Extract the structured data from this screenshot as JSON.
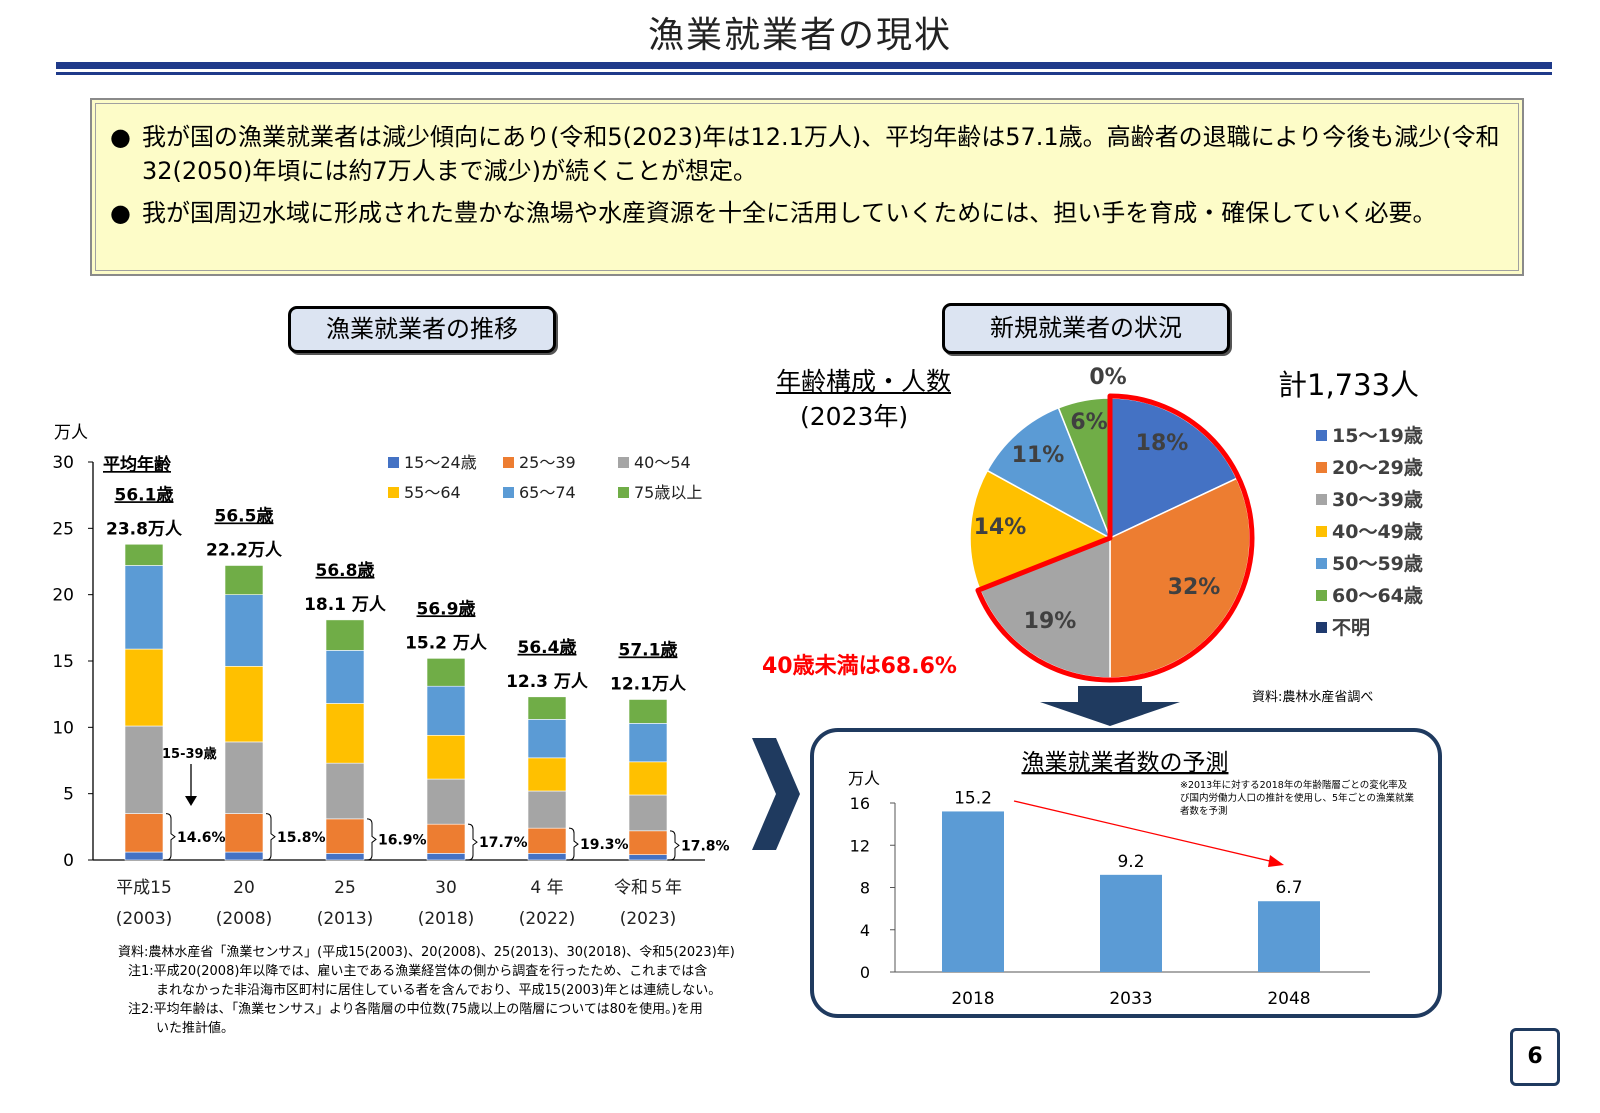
{
  "page": {
    "title": "漁業就業者の現状",
    "page_number": "6"
  },
  "summary": {
    "bullet_symbol": "●",
    "bullets": [
      "我が国の漁業就業者は減少傾向にあり(令和5(2023)年は12.1万人)、平均年齢は57.1歳。高齢者の退職により今後も減少(令和32(2050)年頃には約7万人まで減少)が続くことが想定。",
      "我が国周辺水域に形成された豊かな漁場や水産資源を十全に活用していくためには、担い手を育成・確保していく必要。"
    ]
  },
  "left": {
    "section_title": "漁業就業者の推移",
    "avg_age_label": "平均年齢",
    "arrow_label": "15-39歳",
    "colors": [
      "#4472c4",
      "#ed7d31",
      "#a5a5a5",
      "#ffc000",
      "#5b9bd5",
      "#70ad47"
    ],
    "sources": [
      "資料:農林水産省「漁業センサス」(平成15(2003)、20(2008)、25(2013)、30(2018)、令和5(2023)年)",
      "注1:平成20(2008)年以降では、雇い主である漁業経営体の側から調査を行ったため、これまでは含",
      "まれなかった非沿海市区町村に居住している者を含んでおり、平成15(2003)年とは連続しない。",
      "注2:平均年齢は、「漁業センサス」より各階層の中位数(75歳以上の階層については80を使用。)を用",
      "いた推計値。"
    ]
  },
  "right": {
    "section_title": "新規就業者の状況",
    "age_label": "年齢構成・人数",
    "year_label": "(2023年)",
    "total": "計1,733人",
    "under40": "40歳未満は68.6%",
    "source": "資料:農林水産省調べ",
    "colors": [
      "#4472c4",
      "#ed7d31",
      "#a5a5a5",
      "#ffc000",
      "#5b9bd5",
      "#70ad47",
      "#1f3a6e"
    ],
    "highlight_color": "#ff0000"
  },
  "forecast": {
    "note": "※2013年に対する2018年の年齢階層ごとの変化率及び国内労働力人口の推計を使用し、5年ごとの漁業就業者数を予測",
    "bar_color": "#5b9bd5"
  },
  "chart_data": [
    {
      "type": "bar",
      "stacked": true,
      "title": "漁業就業者の推移",
      "ylabel": "万人",
      "ylim": [
        0,
        30
      ],
      "yticks": [
        0,
        5,
        10,
        15,
        20,
        25,
        30
      ],
      "categories": [
        "平成15",
        "20",
        "25",
        "30",
        "4 年",
        "令和５年"
      ],
      "category_years": [
        "(2003)",
        "(2008)",
        "(2013)",
        "(2018)",
        "(2022)",
        "(2023)"
      ],
      "series": [
        {
          "name": "15〜24歳",
          "values": [
            0.6,
            0.6,
            0.5,
            0.5,
            0.5,
            0.4
          ]
        },
        {
          "name": "25〜39",
          "values": [
            2.9,
            2.9,
            2.6,
            2.2,
            1.9,
            1.8
          ]
        },
        {
          "name": "40〜54",
          "values": [
            6.6,
            5.4,
            4.2,
            3.4,
            2.8,
            2.7
          ]
        },
        {
          "name": "55〜64",
          "values": [
            5.8,
            5.7,
            4.5,
            3.3,
            2.5,
            2.5
          ]
        },
        {
          "name": "65〜74",
          "values": [
            6.3,
            5.4,
            4.0,
            3.7,
            2.9,
            2.9
          ]
        },
        {
          "name": "75歳以上",
          "values": [
            1.6,
            2.2,
            2.3,
            2.1,
            1.7,
            1.8
          ]
        }
      ],
      "totals": [
        23.8,
        22.2,
        18.1,
        15.2,
        12.3,
        12.1
      ],
      "total_labels": [
        "23.8万人",
        "22.2万人",
        "18.1 万人",
        "15.2 万人",
        "12.3 万人",
        "12.1万人"
      ],
      "avg_age_labels": [
        "56.1歳",
        "56.5歳",
        "56.8歳",
        "56.9歳",
        "56.4歳",
        "57.1歳"
      ],
      "share_15_39_labels": [
        "14.6%",
        "15.8%",
        "16.9%",
        "17.7%",
        "19.3%",
        "17.8%"
      ]
    },
    {
      "type": "pie",
      "title": "年齢構成・人数(2023年)",
      "labels": [
        "15〜19歳",
        "20〜29歳",
        "30〜39歳",
        "40〜49歳",
        "50〜59歳",
        "60〜64歳",
        "不明"
      ],
      "values": [
        18,
        32,
        19,
        14,
        11,
        6,
        0
      ],
      "value_labels": [
        "18%",
        "32%",
        "19%",
        "14%",
        "11%",
        "6%",
        "0%"
      ]
    },
    {
      "type": "bar",
      "title": "漁業就業者数の予測",
      "ylabel": "万人",
      "ylim": [
        0,
        16
      ],
      "yticks": [
        0,
        4,
        8,
        12,
        16
      ],
      "categories": [
        "2018",
        "2033",
        "2048"
      ],
      "values": [
        15.2,
        9.2,
        6.7
      ],
      "value_labels": [
        "15.2",
        "9.2",
        "6.7"
      ]
    }
  ]
}
